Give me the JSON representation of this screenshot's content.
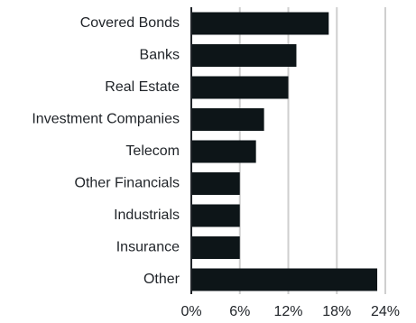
{
  "chart_data": {
    "type": "bar",
    "orientation": "horizontal",
    "categories": [
      "Covered Bonds",
      "Banks",
      "Real Estate",
      "Investment Companies",
      "Telecom",
      "Other Financials",
      "Industrials",
      "Insurance",
      "Other"
    ],
    "values": [
      17,
      13,
      12,
      9,
      8,
      6,
      6,
      6,
      23
    ],
    "xlim": [
      0,
      24
    ],
    "x_ticks": [
      0,
      6,
      12,
      18,
      24
    ],
    "x_tick_labels": [
      "0%",
      "6%",
      "12%",
      "18%",
      "24%"
    ],
    "grid": "vertical",
    "legend": "none",
    "title": "",
    "xlabel": "",
    "ylabel": ""
  },
  "colors": {
    "bar": "#0d1518",
    "grid": "#cfcfcf",
    "axis": "#1f2328",
    "text": "#1f2328"
  }
}
